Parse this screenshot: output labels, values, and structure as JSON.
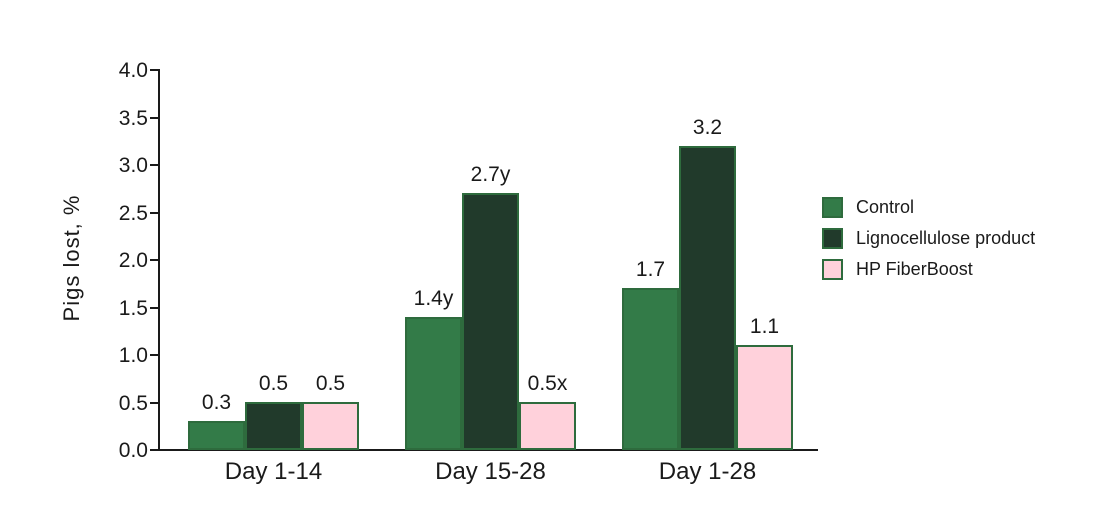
{
  "chart_data": {
    "type": "bar",
    "title": "",
    "xlabel": "",
    "ylabel": "Pigs lost, %",
    "categories": [
      "Day 1-14",
      "Day 15-28",
      "Day 1-28"
    ],
    "series": [
      {
        "name": "Control",
        "color": "#337B48",
        "values": [
          0.3,
          1.4,
          1.7
        ],
        "bar_labels": [
          "0.3",
          "1.4y",
          "1.7"
        ]
      },
      {
        "name": "Lignocellulose product",
        "color": "#213A2B",
        "values": [
          0.5,
          2.7,
          3.2
        ],
        "bar_labels": [
          "0.5",
          "2.7y",
          "3.2"
        ]
      },
      {
        "name": "HP FiberBoost",
        "color": "#FFD1DB",
        "values": [
          0.5,
          0.5,
          1.1
        ],
        "bar_labels": [
          "0.5",
          "0.5x",
          "1.1"
        ]
      }
    ],
    "ylim": [
      0,
      4.0
    ],
    "yticks": [
      "0.0",
      "0.5",
      "1.0",
      "1.5",
      "2.0",
      "2.5",
      "3.0",
      "3.5",
      "4.0"
    ],
    "grid": false,
    "legend_position": "right",
    "bar_edge_color": "#2E6B3D",
    "axis_color": "#1A1A1A",
    "text_color": "#1A1A1A",
    "background": "#FFFFFF"
  }
}
